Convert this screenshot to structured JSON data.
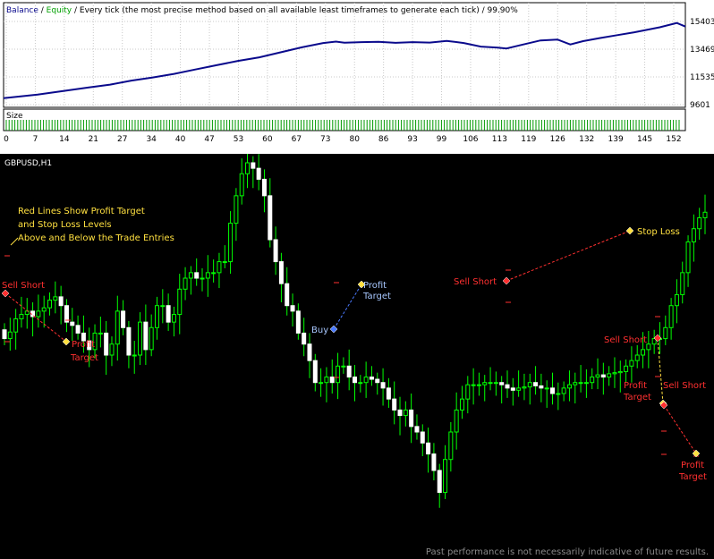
{
  "report": {
    "legend": {
      "balance": "Balance",
      "sep": " / ",
      "equity": "Equity",
      "description": " / Every tick (the most precise method based on all available least timeframes to generate each tick) / 99.90%"
    },
    "size_label": "Size",
    "colors": {
      "balance": "#0a0a8c",
      "equity": "#00a000",
      "size": "#009900"
    }
  },
  "chart_data": [
    {
      "type": "line",
      "title": "",
      "x_ticks": [
        "0",
        "7",
        "14",
        "21",
        "27",
        "34",
        "40",
        "47",
        "53",
        "60",
        "67",
        "73",
        "80",
        "86",
        "93",
        "99",
        "106",
        "113",
        "119",
        "126",
        "132",
        "139",
        "145",
        "152"
      ],
      "y_ticks": [
        "15403",
        "13469",
        "11535",
        "9601"
      ],
      "ylim": [
        9601,
        15403
      ],
      "xlim": [
        0,
        160
      ],
      "grid": true,
      "series": [
        {
          "name": "Balance",
          "x": [
            0,
            4,
            8,
            14,
            20,
            25,
            30,
            35,
            40,
            45,
            50,
            55,
            60,
            65,
            70,
            75,
            78,
            80,
            84,
            88,
            92,
            96,
            100,
            104,
            108,
            112,
            116,
            118,
            122,
            126,
            130,
            133,
            136,
            140,
            144,
            148,
            152,
            154,
            158,
            160
          ],
          "values": [
            10050,
            10180,
            10300,
            10550,
            10800,
            11000,
            11280,
            11500,
            11750,
            12050,
            12350,
            12650,
            12900,
            13250,
            13600,
            13900,
            14000,
            13920,
            13960,
            13980,
            13910,
            13960,
            13930,
            14050,
            13900,
            13650,
            13580,
            13520,
            13800,
            14080,
            14140,
            13800,
            14030,
            14250,
            14450,
            14650,
            14880,
            15000,
            15300,
            15050
          ]
        }
      ]
    },
    {
      "type": "bar",
      "title": "",
      "ylabel": "Size",
      "categories": [
        "0",
        "7",
        "14",
        "21",
        "27",
        "34",
        "40",
        "47",
        "53",
        "60",
        "67",
        "73",
        "80",
        "86",
        "93",
        "99",
        "106",
        "113",
        "119",
        "126",
        "132",
        "139",
        "145",
        "152"
      ],
      "values": [
        1,
        1,
        1,
        1,
        1,
        1,
        1,
        1,
        1,
        1,
        1,
        1,
        1,
        1,
        1,
        1,
        1,
        1,
        1,
        1,
        1,
        1,
        1,
        1
      ]
    },
    {
      "type": "candlestick",
      "title": "GBPUSD,H1",
      "bull_color": "#00ff00",
      "bear_color": "#ffffff",
      "wick_color": "#00ff00",
      "note": "Past performance is not necessarily indicative of future results.",
      "annotation": [
        "Red Lines Show Profit Target",
        "and Stop Loss Levels",
        "Above and Below the Trade Entries"
      ],
      "markers": [
        {
          "label": "Sell Short",
          "color": "#ff3030"
        },
        {
          "label": "Profit",
          "color": "#ff3030"
        },
        {
          "label": "Target",
          "color": "#ff3030"
        },
        {
          "label": "Buy",
          "color": "#a8c8ff"
        },
        {
          "label": "Profit",
          "color": "#a8c8ff"
        },
        {
          "label": "Target",
          "color": "#a8c8ff"
        },
        {
          "label": "Sell Short",
          "color": "#ff3030"
        },
        {
          "label": "Stop Loss",
          "color": "#ffe040"
        },
        {
          "label": "Sell Short",
          "color": "#ff3030"
        },
        {
          "label": "Profit",
          "color": "#ff3030"
        },
        {
          "label": "Target",
          "color": "#ff3030"
        },
        {
          "label": "Sell Short",
          "color": "#ff3030"
        },
        {
          "label": "Profit",
          "color": "#ff3030"
        },
        {
          "label": "Target",
          "color": "#ff3030"
        }
      ],
      "close": [
        340,
        346,
        358,
        362,
        365,
        360,
        365,
        368,
        375,
        378,
        370,
        355,
        352,
        345,
        338,
        330,
        345,
        345,
        325,
        335,
        365,
        350,
        325,
        325,
        355,
        330,
        350,
        370,
        370,
        355,
        362,
        385,
        395,
        400,
        395,
        395,
        400,
        400,
        410,
        410,
        445,
        470,
        490,
        500,
        495,
        485,
        470,
        430,
        410,
        390,
        370,
        365,
        345,
        335,
        320,
        300,
        300,
        305,
        300,
        315,
        315,
        305,
        300,
        300,
        305,
        303,
        300,
        295,
        285,
        275,
        270,
        275,
        260,
        255,
        245,
        235,
        220,
        200,
        230,
        255,
        275,
        285,
        298,
        298,
        298,
        300,
        300,
        300,
        298,
        295,
        293,
        295,
        296,
        300,
        297,
        295,
        295,
        290,
        290,
        295,
        298,
        300,
        300,
        300,
        305,
        307,
        305,
        308,
        309,
        310,
        315,
        320,
        325,
        330,
        335,
        340,
        340,
        350,
        370,
        380,
        400,
        428,
        440,
        450,
        455
      ]
    }
  ]
}
